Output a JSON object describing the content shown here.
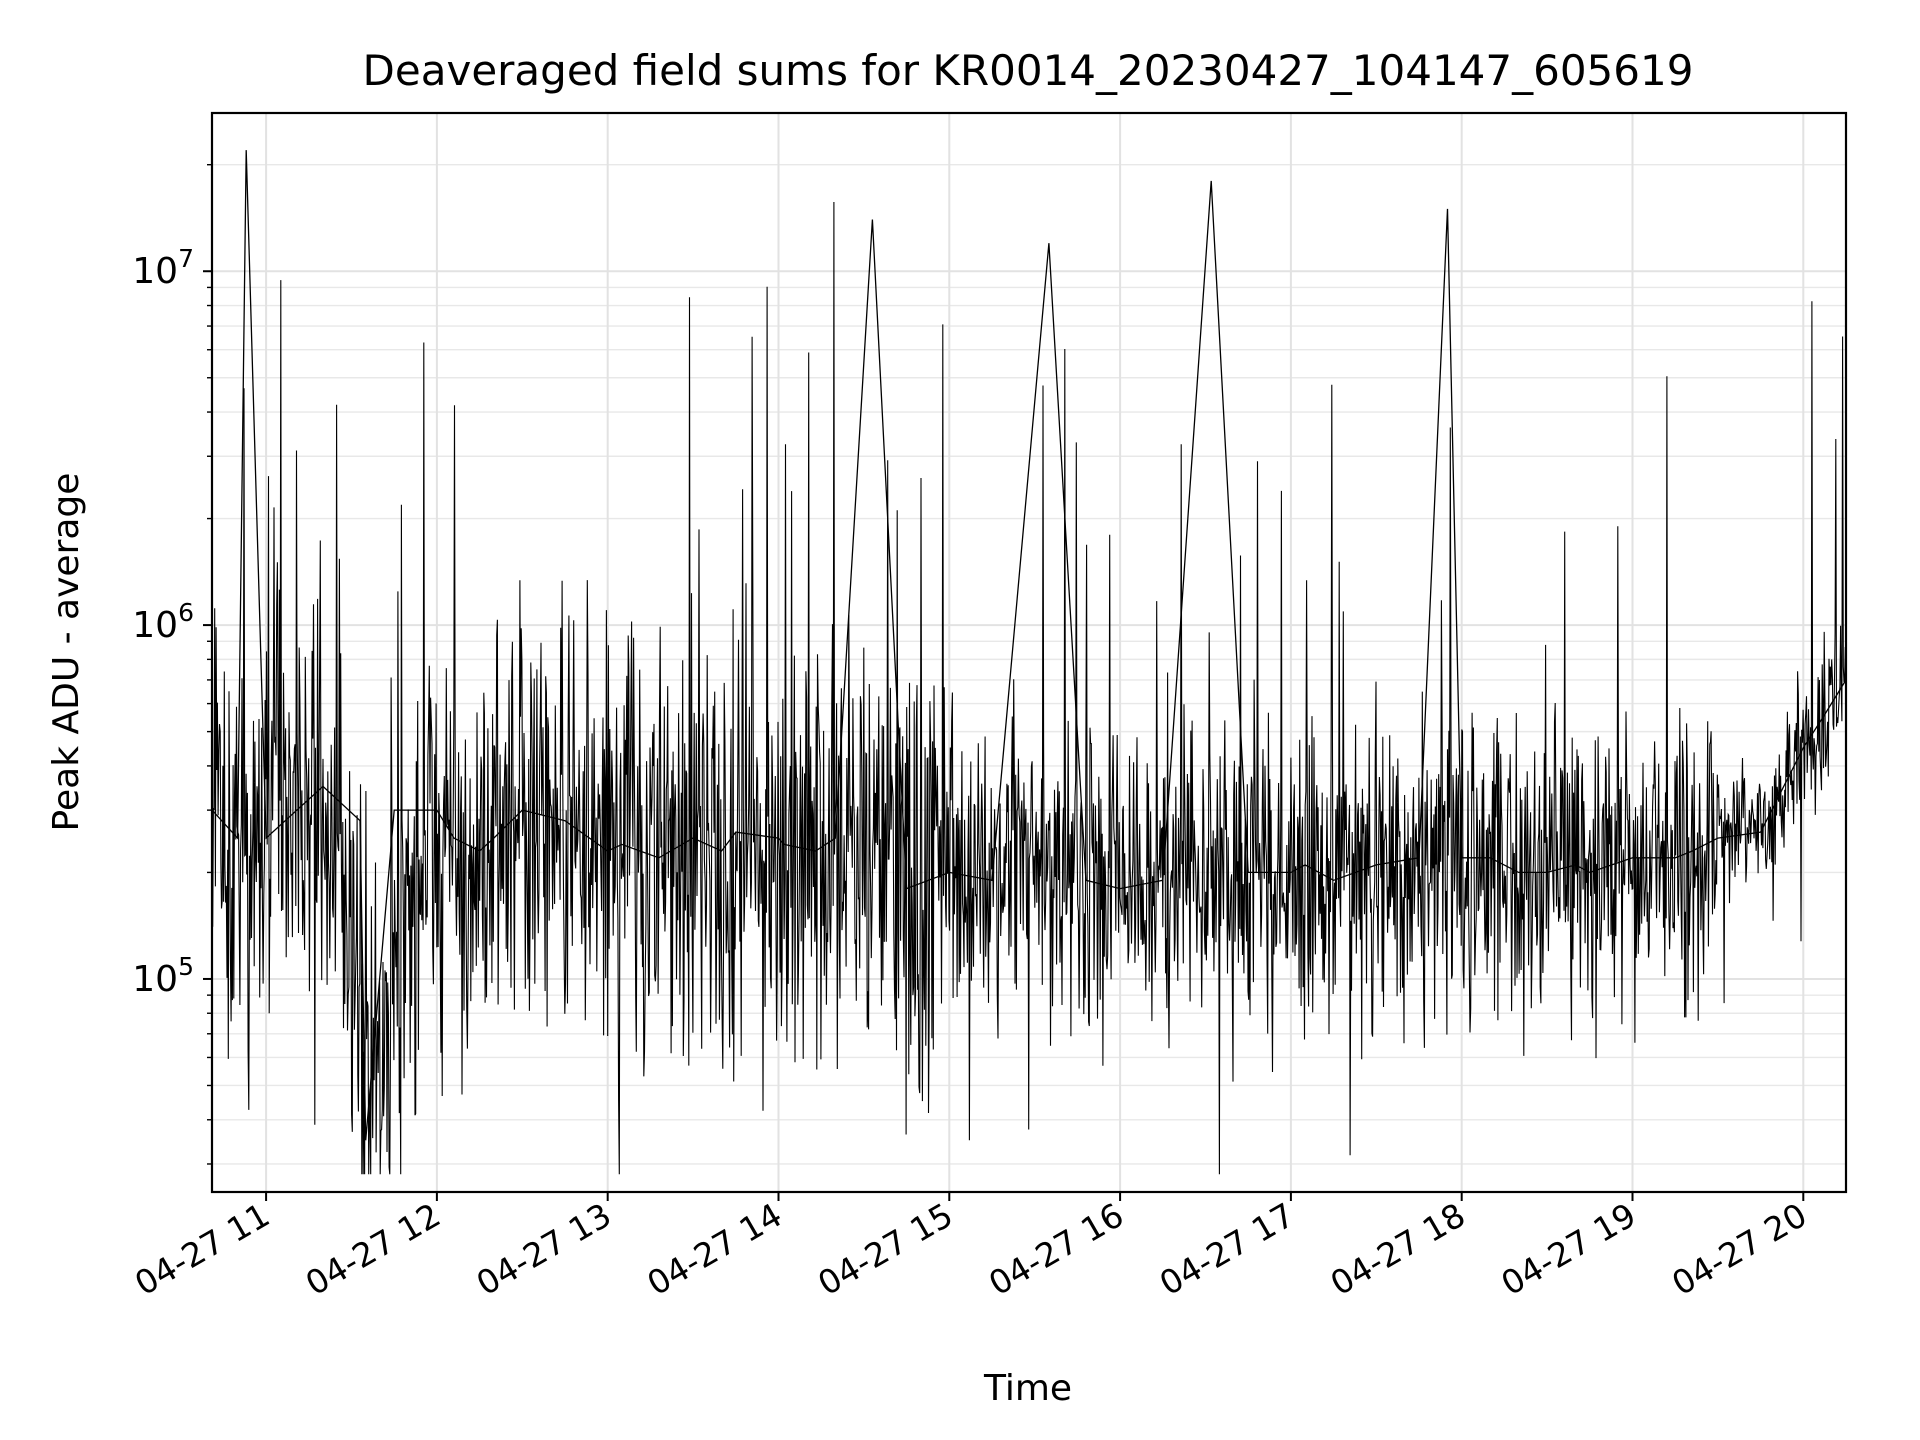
{
  "chart_data": {
    "type": "line",
    "title": "Deaveraged field sums for KR0014_20230427_104147_605619",
    "xlabel": "Time",
    "ylabel": "Peak ADU - average",
    "y_scale": "log",
    "ylim": [
      25000,
      28000000
    ],
    "xlim": [
      "2023-04-27 10:41",
      "2023-04-27 20:15"
    ],
    "grid": true,
    "x_ticks": [
      {
        "value": "2023-04-27 11:00",
        "label": "04-27 11"
      },
      {
        "value": "2023-04-27 12:00",
        "label": "04-27 12"
      },
      {
        "value": "2023-04-27 13:00",
        "label": "04-27 13"
      },
      {
        "value": "2023-04-27 14:00",
        "label": "04-27 14"
      },
      {
        "value": "2023-04-27 15:00",
        "label": "04-27 15"
      },
      {
        "value": "2023-04-27 16:00",
        "label": "04-27 16"
      },
      {
        "value": "2023-04-27 17:00",
        "label": "04-27 17"
      },
      {
        "value": "2023-04-27 18:00",
        "label": "04-27 18"
      },
      {
        "value": "2023-04-27 19:00",
        "label": "04-27 19"
      },
      {
        "value": "2023-04-27 20:00",
        "label": "04-27 20"
      }
    ],
    "y_ticks": [
      {
        "value": 100000,
        "base": "10",
        "exp": "5"
      },
      {
        "value": 1000000,
        "base": "10",
        "exp": "6"
      },
      {
        "value": 10000000,
        "base": "10",
        "exp": "7"
      }
    ],
    "line_color": "#000000",
    "series": [
      {
        "x": [
          "2023-04-27 10:41",
          "2023-04-27 10:50",
          "2023-04-27 10:53",
          "2023-04-27 11:00",
          "2023-04-27 11:20",
          "2023-04-27 11:33",
          "2023-04-27 11:35",
          "2023-04-27 11:45",
          "2023-04-27 12:00",
          "2023-04-27 12:06",
          "2023-04-27 12:15",
          "2023-04-27 12:20",
          "2023-04-27 12:30",
          "2023-04-27 12:45",
          "2023-04-27 13:00",
          "2023-04-27 13:05",
          "2023-04-27 13:18",
          "2023-04-27 13:30",
          "2023-04-27 13:40",
          "2023-04-27 13:45",
          "2023-04-27 14:00",
          "2023-04-27 14:02",
          "2023-04-27 14:13",
          "2023-04-27 14:20",
          "2023-04-27 14:33",
          "2023-04-27 14:45",
          "2023-04-27 15:00",
          "2023-04-27 15:15",
          "2023-04-27 15:35",
          "2023-04-27 15:48",
          "2023-04-27 16:00",
          "2023-04-27 16:15",
          "2023-04-27 16:32",
          "2023-04-27 16:45",
          "2023-04-27 17:00",
          "2023-04-27 17:05",
          "2023-04-27 17:15",
          "2023-04-27 17:30",
          "2023-04-27 17:45",
          "2023-04-27 17:55",
          "2023-04-27 18:00",
          "2023-04-27 18:10",
          "2023-04-27 18:20",
          "2023-04-27 18:30",
          "2023-04-27 18:40",
          "2023-04-27 18:45",
          "2023-04-27 19:00",
          "2023-04-27 19:15",
          "2023-04-27 19:21",
          "2023-04-27 19:30",
          "2023-04-27 19:45",
          "2023-04-27 20:00",
          "2023-04-27 20:07",
          "2023-04-27 20:15"
        ],
        "y": [
          300000,
          250000,
          22000000,
          250000,
          350000,
          280000,
          35000,
          300000,
          300000,
          250000,
          230000,
          250000,
          300000,
          280000,
          230000,
          240000,
          220000,
          250000,
          230000,
          260000,
          250000,
          240000,
          230000,
          250000,
          14000000,
          180000,
          200000,
          190000,
          12000000,
          190000,
          180000,
          190000,
          18000000,
          200000,
          200000,
          210000,
          190000,
          210000,
          220000,
          15000000,
          220000,
          220000,
          200000,
          200000,
          210000,
          200000,
          220000,
          220000,
          230000,
          250000,
          260000,
          450000,
          550000,
          700000
        ]
      }
    ]
  }
}
